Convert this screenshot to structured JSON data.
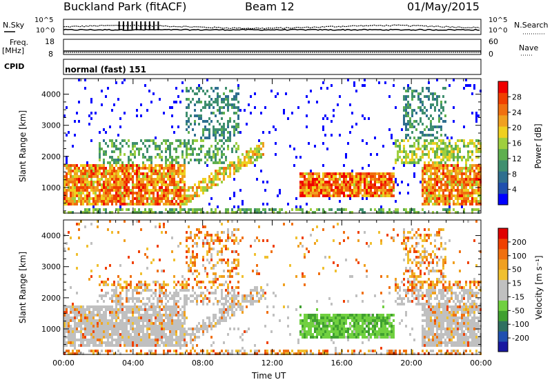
{
  "header": {
    "title": "Buckland Park (fitACF)",
    "beam": "Beam 12",
    "date": "01/May/2015"
  },
  "strip": {
    "nsky_label": "N.Sky",
    "nsearch_label": "N.Search",
    "nsky_ticks": [
      "10^5",
      "10^0"
    ],
    "nsearch_ticks": [
      "10^5",
      "10^0"
    ],
    "freq_label": "Freq.",
    "freq_unit": "[MHz]",
    "freq_ticks": [
      "18",
      "8"
    ],
    "nave_label": "Nave",
    "nave_ticks": [
      "60",
      "0"
    ],
    "cpid_label": "CPID",
    "cpid_text": "normal (fast) 151"
  },
  "panels": {
    "power": {
      "ylabel": "Slant Range [km]",
      "yticks": [
        "4000",
        "3000",
        "2000",
        "1000"
      ],
      "colorbar_label": "Power [dB]",
      "colorbar_ticks": [
        "28",
        "24",
        "20",
        "16",
        "12",
        "8",
        "4"
      ],
      "colors": [
        "#0000ff",
        "#1f4fae",
        "#2f6f8f",
        "#3f8f6f",
        "#5faf4f",
        "#9fcf3f",
        "#efd020",
        "#f0a020",
        "#f07010",
        "#f04000",
        "#f00000"
      ]
    },
    "velocity": {
      "ylabel": "Slant Range [km]",
      "yticks": [
        "4000",
        "3000",
        "2000",
        "1000"
      ],
      "colorbar_label": "Velocity [m s⁻¹]",
      "colorbar_ticks": [
        "200",
        "100",
        "50",
        "15",
        "-15",
        "-50",
        "-100",
        "-200"
      ],
      "colors": [
        "#1818a0",
        "#2050b0",
        "#307060",
        "#40a030",
        "#70d040",
        "#c0c0c0",
        "#c0c0c0",
        "#f0c030",
        "#f0a020",
        "#f07010",
        "#f04000",
        "#e00000"
      ]
    }
  },
  "xaxis": {
    "label": "Time UT",
    "ticks": [
      "00:00",
      "04:00",
      "08:00",
      "12:00",
      "16:00",
      "20:00",
      "00:00"
    ]
  },
  "chart_data": [
    {
      "type": "heatmap",
      "title": "Buckland Park (fitACF) Beam 12 01/May/2015",
      "xlabel": "Time UT",
      "ylabel": "Slant Range [km]",
      "xlim": [
        "00:00",
        "24:00"
      ],
      "ylim": [
        180,
        4500
      ],
      "colorbar": {
        "label": "Power [dB]",
        "range": [
          0,
          30
        ],
        "ticks": [
          4,
          8,
          12,
          16,
          20,
          24,
          28
        ]
      },
      "grid": false
    },
    {
      "type": "heatmap",
      "title": "",
      "xlabel": "Time UT",
      "ylabel": "Slant Range [km]",
      "xlim": [
        "00:00",
        "24:00"
      ],
      "ylim": [
        180,
        4500
      ],
      "colorbar": {
        "label": "Velocity [m s-1]",
        "range": [
          -250,
          250
        ],
        "ticks": [
          -200,
          -100,
          -50,
          -15,
          15,
          50,
          100,
          200
        ]
      },
      "grid": false
    }
  ]
}
